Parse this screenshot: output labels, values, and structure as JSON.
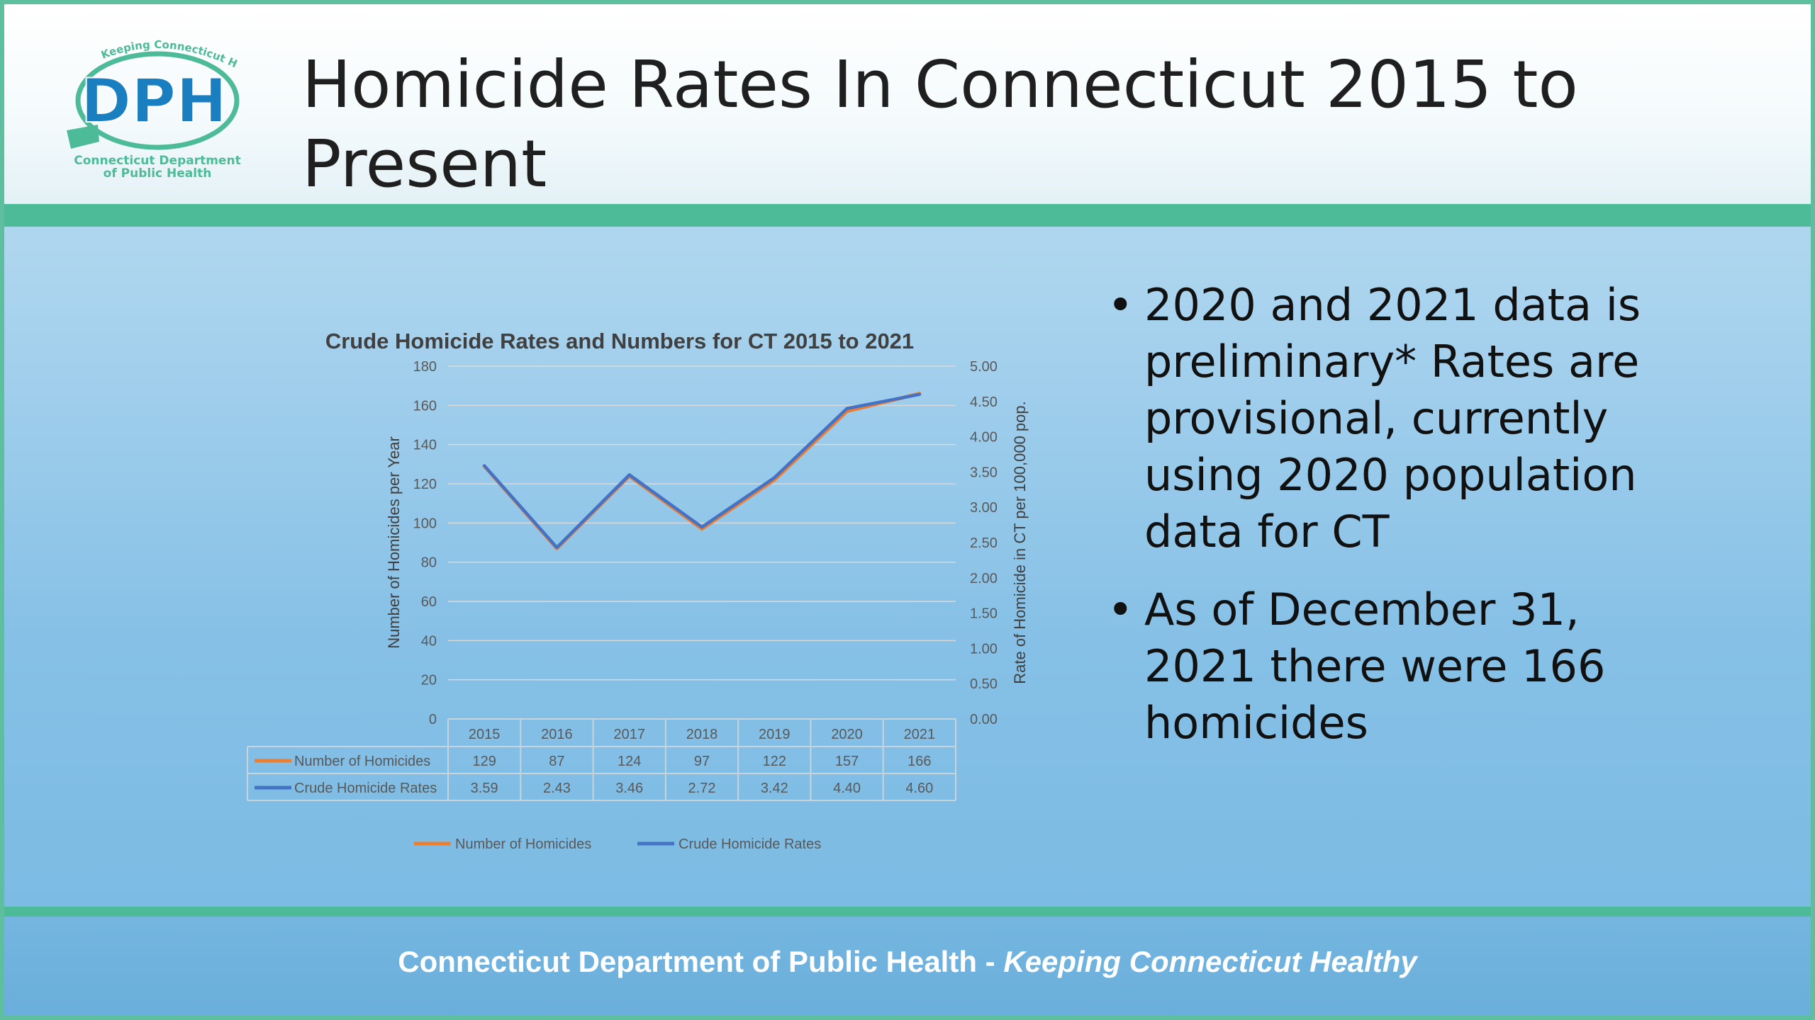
{
  "slide": {
    "title": "Homicide Rates In Connecticut 2015 to Present",
    "logo": {
      "name": "DPH",
      "arc_text": "Keeping Connecticut Healthy",
      "line1": "Connecticut Department",
      "line2": "of Public Health",
      "colors": {
        "blue": "#1a7fc1",
        "green": "#4dbb98"
      }
    },
    "bullets": [
      "2020 and 2021 data is preliminary* Rates are provisional, currently using 2020 population data for CT",
      "As of December 31, 2021 there were 166 homicides"
    ],
    "footer": {
      "org": "Connecticut Department of Public Health",
      "separator": " - ",
      "tagline": "Keeping Connecticut Healthy"
    }
  },
  "chart_data": {
    "type": "line",
    "title": "Crude Homicide Rates and Numbers for CT 2015 to 2021",
    "categories": [
      "2015",
      "2016",
      "2017",
      "2018",
      "2019",
      "2020",
      "2021"
    ],
    "series": [
      {
        "name": "Number of Homicides",
        "axis": "left",
        "color": "#ed7d31",
        "values": [
          129,
          87,
          124,
          97,
          122,
          157,
          166
        ],
        "display": [
          "129",
          "87",
          "124",
          "97",
          "122",
          "157",
          "166"
        ]
      },
      {
        "name": "Crude Homicide Rates",
        "axis": "right",
        "color": "#4472c4",
        "values": [
          3.59,
          2.43,
          3.46,
          2.72,
          3.42,
          4.4,
          4.6
        ],
        "display": [
          "3.59",
          "2.43",
          "3.46",
          "2.72",
          "3.42",
          "4.40",
          "4.60"
        ]
      }
    ],
    "y_left": {
      "label": "Number of Homicides per Year",
      "min": 0,
      "max": 180,
      "step": 20,
      "ticks": [
        "0",
        "20",
        "40",
        "60",
        "80",
        "100",
        "120",
        "140",
        "160",
        "180"
      ]
    },
    "y_right": {
      "label": "Rate of Homicide in CT per 100,000 pop.",
      "min": 0,
      "max": 5,
      "step": 0.5,
      "ticks": [
        "0.00",
        "0.50",
        "1.00",
        "1.50",
        "2.00",
        "2.50",
        "3.00",
        "3.50",
        "4.00",
        "4.50",
        "5.00"
      ]
    },
    "grid": true,
    "data_table": true,
    "legend": "bottom"
  }
}
